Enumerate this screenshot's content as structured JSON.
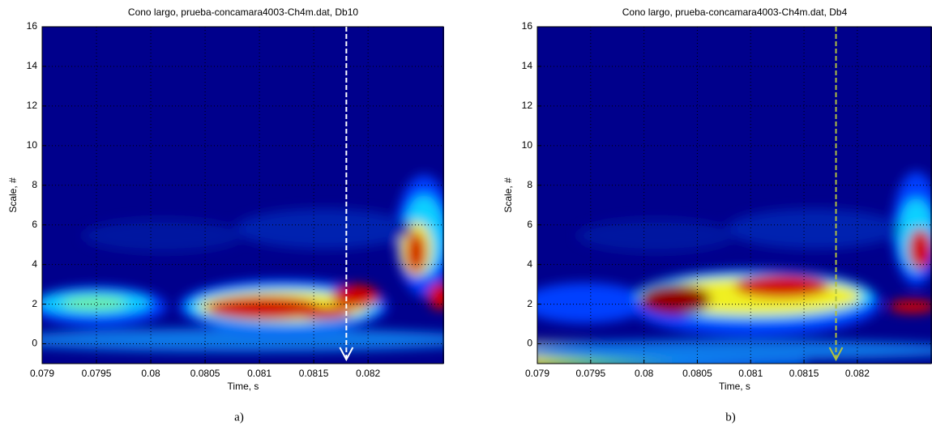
{
  "chart_data": [
    {
      "type": "heatmap",
      "title": "Cono largo, prueba-concamara4003-Ch4m.dat, Db10",
      "xlabel": "Time, s",
      "ylabel": "Scale, #",
      "caption": "a)",
      "xlim": [
        0.079,
        0.0827
      ],
      "ylim": [
        -1,
        16
      ],
      "xticks": [
        0.079,
        0.0795,
        0.08,
        0.0805,
        0.081,
        0.0815,
        0.082
      ],
      "yticks": [
        0,
        2,
        4,
        6,
        8,
        10,
        12,
        14,
        16
      ],
      "grid": true,
      "marker_x": 0.0818,
      "marker_color": "#ffffff"
    },
    {
      "type": "heatmap",
      "title": "Cono largo, prueba-concamara4003-Ch4m.dat, Db4",
      "xlabel": "Time, s",
      "ylabel": "Scale, #",
      "caption": "b)",
      "xlim": [
        0.079,
        0.0827
      ],
      "ylim": [
        -1,
        16
      ],
      "xticks": [
        0.079,
        0.0795,
        0.08,
        0.0805,
        0.081,
        0.0815,
        0.082
      ],
      "yticks": [
        0,
        2,
        4,
        6,
        8,
        10,
        12,
        14,
        16
      ],
      "grid": true,
      "marker_x": 0.0818,
      "marker_color": "#b0c040"
    }
  ]
}
